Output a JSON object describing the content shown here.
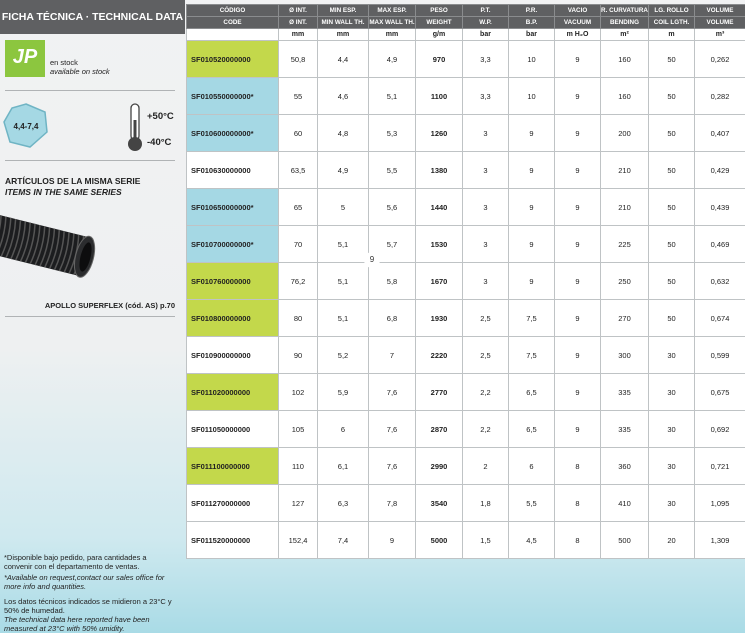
{
  "sidebar": {
    "title": "FICHA TÉCNICA · TECHNICAL DATA",
    "logo": "JP",
    "stock": [
      "en stock",
      "available on stock"
    ],
    "diameter_range": "4,4-7,4",
    "temp_max": "+50°C",
    "temp_min": "-40°C",
    "series_title": "ARTÍCULOS DE LA MISMA SERIE",
    "series_title_en": "ITEMS IN THE SAME SERIES",
    "series_item": "APOLLO SUPERFLEX  (cód. AS) p.70"
  },
  "table": {
    "header_es": [
      "CÓDIGO",
      "Ø INT.",
      "MIN ESP.",
      "MAX ESP.",
      "PESO",
      "P.T.",
      "P.R.",
      "VACIO",
      "R. CURVATURA",
      "LG. ROLLO",
      "VOLUME"
    ],
    "header_en": [
      "CODE",
      "Ø INT.",
      "MIN WALL TH.",
      "MAX WALL TH.",
      "WEIGHT",
      "W.P.",
      "B.P.",
      "VACUUM",
      "BENDING",
      "COIL LGTH.",
      "VOLUME"
    ],
    "units": [
      "mm",
      "mm",
      "mm",
      "g/m",
      "bar",
      "bar",
      "m H₂O",
      "m²",
      "m",
      "m³"
    ],
    "rows": [
      {
        "fill": "#c3d84b",
        "cells": [
          "SF010520000000",
          "50,8",
          "4,4",
          "4,9",
          "970",
          "3,3",
          "10",
          "9",
          "160",
          "50",
          "0,262"
        ]
      },
      {
        "fill": "#a5d8e4",
        "cells": [
          "SF010550000000*",
          "55",
          "4,6",
          "5,1",
          "1100",
          "3,3",
          "10",
          "9",
          "160",
          "50",
          "0,282"
        ]
      },
      {
        "fill": "#a5d8e4",
        "cells": [
          "SF010600000000*",
          "60",
          "4,8",
          "5,3",
          "1260",
          "3",
          "9",
          "9",
          "200",
          "50",
          "0,407"
        ]
      },
      {
        "fill": "#ffffff",
        "cells": [
          "SF010630000000",
          "63,5",
          "4,9",
          "5,5",
          "1380",
          "3",
          "9",
          "9",
          "210",
          "50",
          "0,429"
        ]
      },
      {
        "fill": "#a5d8e4",
        "cells": [
          "SF010650000000*",
          "65",
          "5",
          "5,6",
          "1440",
          "3",
          "9",
          "9",
          "210",
          "50",
          "0,439"
        ]
      },
      {
        "fill": "#a5d8e4",
        "cells": [
          "SF010700000000*",
          "70",
          "5,1",
          "5,7",
          "1530",
          "3",
          "9",
          "9",
          "225",
          "50",
          "0,469"
        ]
      },
      {
        "fill": "#c3d84b",
        "cells": [
          "SF010760000000",
          "76,2",
          "5,1",
          "5,8",
          "1670",
          "3",
          "9",
          "9",
          "250",
          "50",
          "0,632"
        ]
      },
      {
        "fill": "#c3d84b",
        "cells": [
          "SF010800000000",
          "80",
          "5,1",
          "6,8",
          "1930",
          "2,5",
          "7,5",
          "9",
          "270",
          "50",
          "0,674"
        ]
      },
      {
        "fill": "#ffffff",
        "cells": [
          "SF010900000000",
          "90",
          "5,2",
          "7",
          "2220",
          "2,5",
          "7,5",
          "9",
          "300",
          "30",
          "0,599"
        ]
      },
      {
        "fill": "#c3d84b",
        "cells": [
          "SF011020000000",
          "102",
          "5,9",
          "7,6",
          "2770",
          "2,2",
          "6,5",
          "9",
          "335",
          "30",
          "0,675"
        ]
      },
      {
        "fill": "#ffffff",
        "cells": [
          "SF011050000000",
          "105",
          "6",
          "7,6",
          "2870",
          "2,2",
          "6,5",
          "9",
          "335",
          "30",
          "0,692"
        ]
      },
      {
        "fill": "#c3d84b",
        "cells": [
          "SF011100000000",
          "110",
          "6,1",
          "7,6",
          "2990",
          "2",
          "6",
          "8",
          "360",
          "30",
          "0,721"
        ]
      },
      {
        "fill": "#ffffff",
        "cells": [
          "SF011270000000",
          "127",
          "6,3",
          "7,8",
          "3540",
          "1,8",
          "5,5",
          "8",
          "410",
          "30",
          "1,095"
        ]
      },
      {
        "fill": "#ffffff",
        "cells": [
          "SF011520000000",
          "152,4",
          "7,4",
          "9",
          "5000",
          "1,5",
          "4,5",
          "8",
          "500",
          "20",
          "1,309"
        ]
      }
    ]
  },
  "page_number": "9",
  "notes": [
    "*Disponible bajo pedido, para cantidades a convenir con el departamento de ventas.",
    "*Available on request,contact our sales office for more info and quantities.",
    "Los datos técnicos indicados se midieron a 23°C y 50% de humedad.",
    "The technical data here reported have been measured at 23°C with 50% umidity."
  ]
}
